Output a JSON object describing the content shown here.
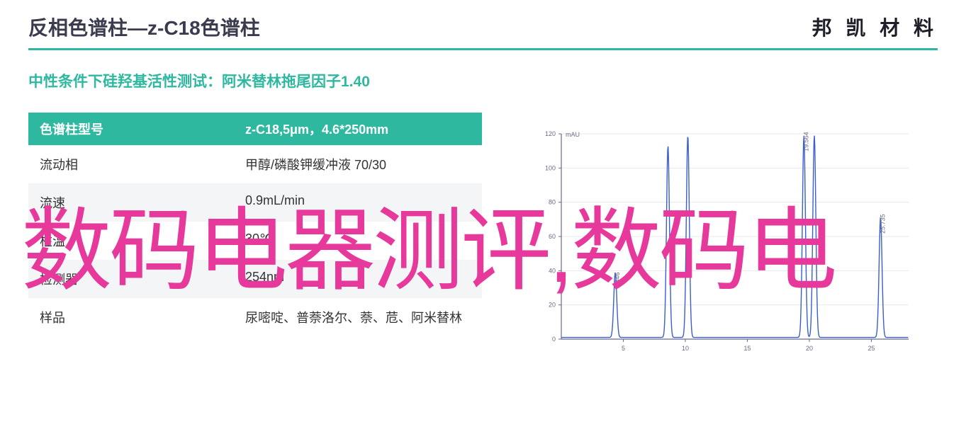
{
  "header": {
    "title": "反相色谱柱—z-C18色谱柱",
    "brand": "邦 凯 材 料"
  },
  "subtitle": "中性条件下硅羟基活性测试：阿米替林拖尾因子1.40",
  "title_underline_color": "#2eb8a0",
  "table": {
    "header_bg": "#2eb8a0",
    "header_fg": "#ffffff",
    "alt_row_bg": "#f4f5f7",
    "col_header_left": "色谱柱型号",
    "col_header_right": "z-C18,5μm，4.6*250mm",
    "rows": [
      {
        "label": "流动相",
        "value": "甲醇/磷酸钾缓冲液 70/30",
        "alt": false
      },
      {
        "label": "流速",
        "value": "0.9mL/min",
        "alt": true
      },
      {
        "label": "柱温",
        "value": "30℃",
        "alt": false
      },
      {
        "label": "检测器",
        "value": "254nm",
        "alt": true
      },
      {
        "label": "样品",
        "value": "尿嘧啶、普萘洛尔、萘、苊、阿米替林",
        "alt": false
      }
    ]
  },
  "chart": {
    "type": "line",
    "y_unit_label": "mAU",
    "background_color": "#ffffff",
    "axis_color": "#6b6b8a",
    "line_color": "#3a5fcd",
    "grid_color": "#e8e8ee",
    "xlim": [
      0,
      28
    ],
    "ylim": [
      0,
      120
    ],
    "xticks": [
      5,
      10,
      15,
      20,
      25
    ],
    "yticks": [
      0,
      20,
      40,
      60,
      80,
      100,
      120
    ],
    "peaks": [
      {
        "rt": 4.35,
        "label": "4.346",
        "height": 38
      },
      {
        "rt": 8.6,
        "label": "",
        "height": 112
      },
      {
        "rt": 10.2,
        "label": "",
        "height": 118
      },
      {
        "rt": 19.56,
        "label": "19.564",
        "height": 118
      },
      {
        "rt": 20.4,
        "label": "",
        "height": 118
      },
      {
        "rt": 25.74,
        "label": "25.735",
        "height": 70
      }
    ],
    "label_fontsize": 9,
    "label_color": "#6b6b8a"
  },
  "overlay_text": "数码电器测评,数码电",
  "overlay_color": "#e6399b"
}
